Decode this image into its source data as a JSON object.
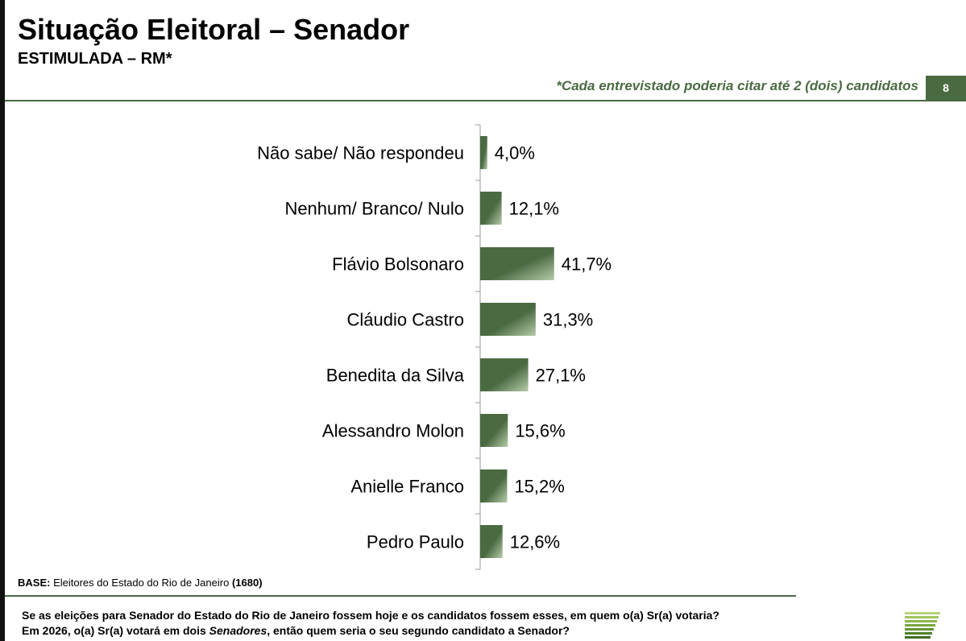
{
  "header": {
    "title": "Situação Eleitoral – Senador",
    "subtitle": "ESTIMULADA – RM*",
    "note": "*Cada entrevistado poderia citar até 2 (dois) candidatos",
    "page_number": "8"
  },
  "footer": {
    "base_label": "BASE:",
    "base_text": "Eleitores do Estado do Rio de Janeiro",
    "base_count": "(1680)",
    "question_line1": "Se as eleições para Senador do Estado do Rio de Janeiro fossem hoje e os candidatos fossem esses, em quem o(a) Sr(a) votaria?",
    "question_line2_prefix": "Em 2026, o(a) Sr(a) votará em dois ",
    "question_line2_emphasis": "Senadores",
    "question_line2_suffix": ", então quem seria o seu segundo candidato a Senador?"
  },
  "colors": {
    "bar_dark": "#4a6a42",
    "bar_light": "#b6ccaa",
    "accent": "#4a6a42"
  },
  "chart_data": {
    "type": "bar",
    "orientation": "horizontal",
    "categories": [
      "Não sabe/ Não respondeu",
      "Nenhum/ Branco/ Nulo",
      "Flávio Bolsonaro",
      "Cláudio Castro",
      "Benedita da Silva",
      "Alessandro Molon",
      "Anielle Franco",
      "Pedro Paulo"
    ],
    "values": [
      4.0,
      12.1,
      41.7,
      31.3,
      27.1,
      15.6,
      15.2,
      12.6
    ],
    "data_labels": [
      "4,0%",
      "12,1%",
      "41,7%",
      "31,3%",
      "27,1%",
      "15,6%",
      "15,2%",
      "12,6%"
    ],
    "xlim": [
      0,
      100
    ],
    "grid": false,
    "legend": "none"
  }
}
